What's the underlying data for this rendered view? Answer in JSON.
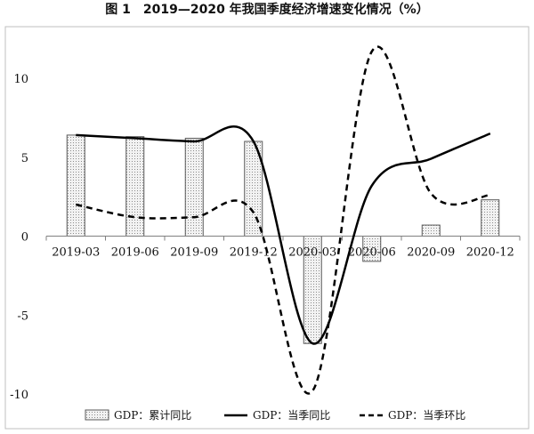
{
  "chart_data": {
    "type": "bar",
    "title": "图 1　2019—2020 年我国季度经济增速变化情况（%）",
    "categories": [
      "2019-03",
      "2019-06",
      "2019-09",
      "2019-12",
      "2020-03",
      "2020-06",
      "2020-09",
      "2020-12"
    ],
    "ylim": [
      -10,
      12
    ],
    "yticks": [
      -10,
      -5,
      0,
      5,
      10
    ],
    "grid": false,
    "legend_position": "bottom",
    "series": [
      {
        "name": "GDP：累计同比",
        "type": "bar",
        "values": [
          6.4,
          6.3,
          6.2,
          6.0,
          -6.8,
          -1.6,
          0.7,
          2.3
        ]
      },
      {
        "name": "GDP：当季同比",
        "type": "line",
        "style": "solid",
        "values": [
          6.4,
          6.2,
          6.0,
          6.0,
          -6.8,
          3.2,
          4.9,
          6.5
        ]
      },
      {
        "name": "GDP：当季环比",
        "type": "line",
        "style": "dashed",
        "values": [
          2.0,
          1.2,
          1.2,
          1.5,
          -9.8,
          11.7,
          2.7,
          2.6
        ]
      }
    ]
  }
}
